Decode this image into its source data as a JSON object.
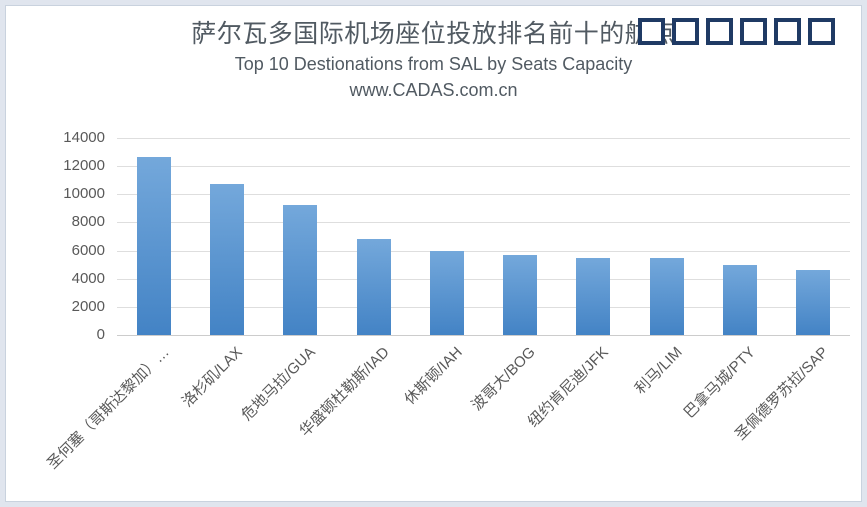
{
  "header": {
    "title": "萨尔瓦多国际机场座位投放排名前十的航点",
    "subtitle": "Top 10 Destionations from SAL by Seats Capacity",
    "watermark": "www.CADAS.com.cn",
    "missing_glyph_boxes": 6,
    "missing_glyph_box_color": "#1f3a64",
    "text_color": "#515a62"
  },
  "chart_data": {
    "type": "bar",
    "title": "萨尔瓦多国际机场座位投放排名前十的航点",
    "subtitle_en": "Top 10 Destionations from SAL by Seats Capacity",
    "watermark": "www.CADAS.com.cn",
    "categories": [
      "圣何塞（哥斯达黎加）…",
      "洛杉矶/LAX",
      "危地马拉/GUA",
      "华盛顿杜勒斯/IAD",
      "休斯顿/IAH",
      "波哥大/BOG",
      "纽约肯尼迪/JFK",
      "利马/LIM",
      "巴拿马城/PTY",
      "圣佩德罗苏拉/SAP"
    ],
    "values": [
      12650,
      10750,
      9250,
      6800,
      5950,
      5700,
      5500,
      5450,
      5000,
      4600
    ],
    "xlabel": "",
    "ylabel": "",
    "ylim": [
      0,
      14000
    ],
    "yticks": [
      0,
      2000,
      4000,
      6000,
      8000,
      10000,
      12000,
      14000
    ],
    "grid": true,
    "legend": false,
    "bar_gradient_top": "#74a8db",
    "bar_gradient_bottom": "#4383c5",
    "gridline_color": "#dedede",
    "axis_line_color": "#cccccc",
    "tick_label_color": "#595959"
  }
}
